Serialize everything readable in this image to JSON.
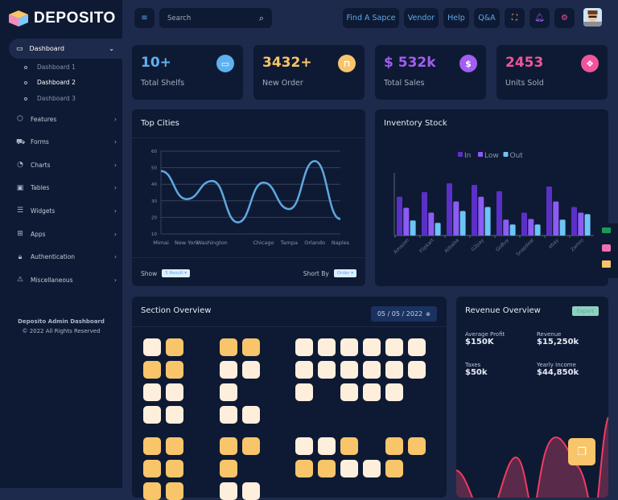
{
  "brand": {
    "name": "DEPOSITO"
  },
  "sidebar": {
    "dashboard": {
      "label": "Dashboard",
      "icon": "monitor-icon",
      "children": [
        "Dashboard 1",
        "Dashboard 2",
        "Dashboard 3"
      ],
      "active_child": 1
    },
    "items": [
      {
        "label": "Features",
        "icon": "box-icon"
      },
      {
        "label": "Forms",
        "icon": "truck-icon"
      },
      {
        "label": "Charts",
        "icon": "pie-chart-icon"
      },
      {
        "label": "Tables",
        "icon": "table-icon"
      },
      {
        "label": "Widgets",
        "icon": "server-icon"
      },
      {
        "label": "Apps",
        "icon": "grid-icon"
      },
      {
        "label": "Authentication",
        "icon": "lock-icon"
      },
      {
        "label": "Miscellaneous",
        "icon": "warning-icon"
      }
    ],
    "footer": {
      "title": "Deposito Admin Dashboard",
      "copyright": "© 2022 All Rights Reserved"
    }
  },
  "header": {
    "search_placeholder": "Search",
    "links": [
      "Find A Sapce",
      "Vendor",
      "Help",
      "Q&A"
    ]
  },
  "stats": [
    {
      "value": "10+",
      "label": "Total Shelfs",
      "color": "#5fb0ef",
      "icon": "inbox-icon"
    },
    {
      "value": "3432+",
      "label": "New Order",
      "color": "#f9c56a",
      "icon": "shopping-bag-icon"
    },
    {
      "value": "$ 532k",
      "label": "Total Sales",
      "color": "#a25ef0",
      "icon": "dollar-icon"
    },
    {
      "value": "2453",
      "label": "Units Sold",
      "color": "#f0559c",
      "icon": "dropbox-icon"
    }
  ],
  "top_cities": {
    "title": "Top Cities",
    "show_label": "Show",
    "show_value": "5 Result",
    "sort_label": "Short By",
    "sort_value": "Order"
  },
  "inventory": {
    "title": "Inventory Stock"
  },
  "chart_data": [
    {
      "type": "line",
      "categories": [
        "Mimai",
        "New York",
        "Washington",
        "",
        "Chicago",
        "Tampa",
        "Orlando",
        "Naples"
      ],
      "values": [
        48,
        31,
        42,
        17,
        41,
        25,
        54,
        19
      ],
      "ylim": [
        10,
        60
      ],
      "yticks": [
        10,
        20,
        30,
        40,
        50,
        60
      ],
      "grid": true,
      "color": "#5fa8e0"
    },
    {
      "type": "bar",
      "categories": [
        "Amazon",
        "Flipkart",
        "Alibaba",
        "G2pay",
        "GoBuy",
        "Snapdeal",
        "ebay",
        "Zamro"
      ],
      "series": [
        {
          "name": "In",
          "color": "#5b30c8",
          "values": [
            49,
            55,
            66,
            64,
            56,
            29,
            62,
            36
          ]
        },
        {
          "name": "Low",
          "color": "#8c5cf5",
          "values": [
            35,
            29,
            43,
            49,
            20,
            21,
            43,
            29
          ]
        },
        {
          "name": "Out",
          "color": "#6cc4f7",
          "values": [
            19,
            16,
            31,
            36,
            14,
            14,
            20,
            27
          ]
        }
      ],
      "legend": "top",
      "grid": false
    }
  ],
  "section_overview": {
    "title": "Section Overview",
    "date": "05 / 05 / 2022",
    "blocks": [
      [
        [
          "c",
          "o"
        ],
        [
          "o",
          "o"
        ],
        [
          "c",
          "c"
        ],
        [
          "c",
          "c"
        ]
      ],
      [
        [
          "o",
          "o"
        ],
        [
          "c",
          "c"
        ],
        [
          "c",
          ""
        ],
        [
          "c",
          "c"
        ]
      ],
      [
        [
          "c",
          "c",
          "c",
          "c",
          "c",
          "c"
        ],
        [
          "c",
          "c",
          "c",
          "c",
          "c",
          "c"
        ],
        [
          "c",
          "",
          "c",
          "c",
          "c",
          ""
        ]
      ],
      [
        [
          "o",
          "o"
        ],
        [
          "o",
          "o"
        ],
        [
          "o",
          "o"
        ]
      ],
      [
        [
          "o",
          "o"
        ],
        [
          "o",
          ""
        ],
        [
          "c",
          "c"
        ]
      ],
      [
        [
          "c",
          "c",
          "o",
          "",
          "o",
          "o"
        ],
        [
          "o",
          "o",
          "c",
          "c",
          "o",
          ""
        ]
      ]
    ]
  },
  "revenue": {
    "title": "Revenue Overview",
    "export_label": "Export",
    "metrics": [
      {
        "label": "Average Profit",
        "value": "$150K"
      },
      {
        "label": "Revenue",
        "value": "$15,250k"
      },
      {
        "label": "Taxes",
        "value": "$50k"
      },
      {
        "label": "Yearly Income",
        "value": "$44,850k"
      }
    ]
  }
}
